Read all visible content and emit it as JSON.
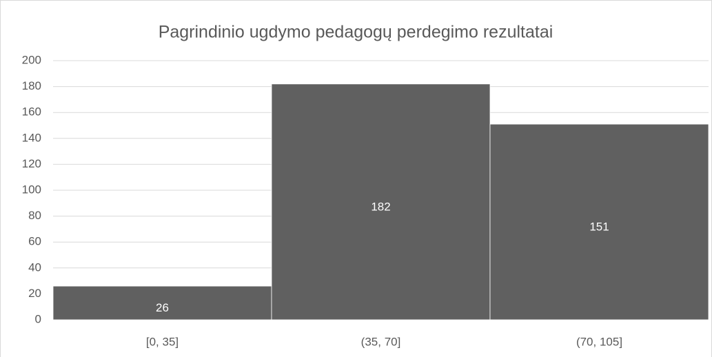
{
  "chart_data": {
    "type": "bar",
    "title": "Pagrindinio ugdymo pedagogų perdegimo rezultatai",
    "categories": [
      "[0, 35]",
      "(35, 70]",
      "(70, 105]"
    ],
    "values": [
      26,
      182,
      151
    ],
    "color": "#606060",
    "ylim": [
      0,
      200
    ],
    "yticks": [
      0,
      20,
      40,
      60,
      80,
      100,
      120,
      140,
      160,
      180,
      200
    ],
    "grid": true
  }
}
